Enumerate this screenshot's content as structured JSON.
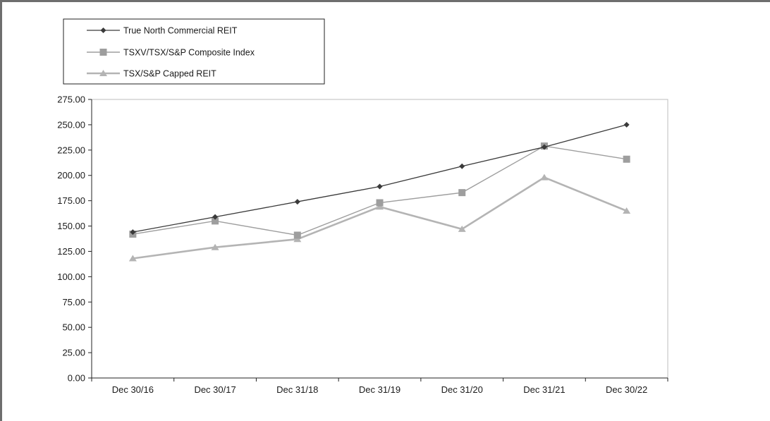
{
  "chart_data": {
    "type": "line",
    "categories": [
      "Dec 30/16",
      "Dec 30/17",
      "Dec 31/18",
      "Dec 31/19",
      "Dec 31/20",
      "Dec 31/21",
      "Dec 30/22"
    ],
    "ylim": [
      0,
      275
    ],
    "yticks": [
      "0.00",
      "25.00",
      "50.00",
      "75.00",
      "100.00",
      "125.00",
      "150.00",
      "175.00",
      "200.00",
      "225.00",
      "250.00",
      "275.00"
    ],
    "grid": false,
    "legend_position": "top-left",
    "series": [
      {
        "name": "True North Commercial REIT",
        "values": [
          144,
          159,
          174,
          189,
          209,
          228,
          250
        ],
        "color": "#3a3a3a",
        "marker": "diamond"
      },
      {
        "name": "TSXV/TSX/S&P Composite Index",
        "values": [
          142,
          155,
          141,
          173,
          183,
          229,
          216
        ],
        "color": "#9e9e9e",
        "marker": "square"
      },
      {
        "name": "TSX/S&P Capped REIT",
        "values": [
          118,
          129,
          137,
          169,
          147,
          198,
          165
        ],
        "color": "#b4b4b4",
        "marker": "triangle"
      }
    ]
  }
}
